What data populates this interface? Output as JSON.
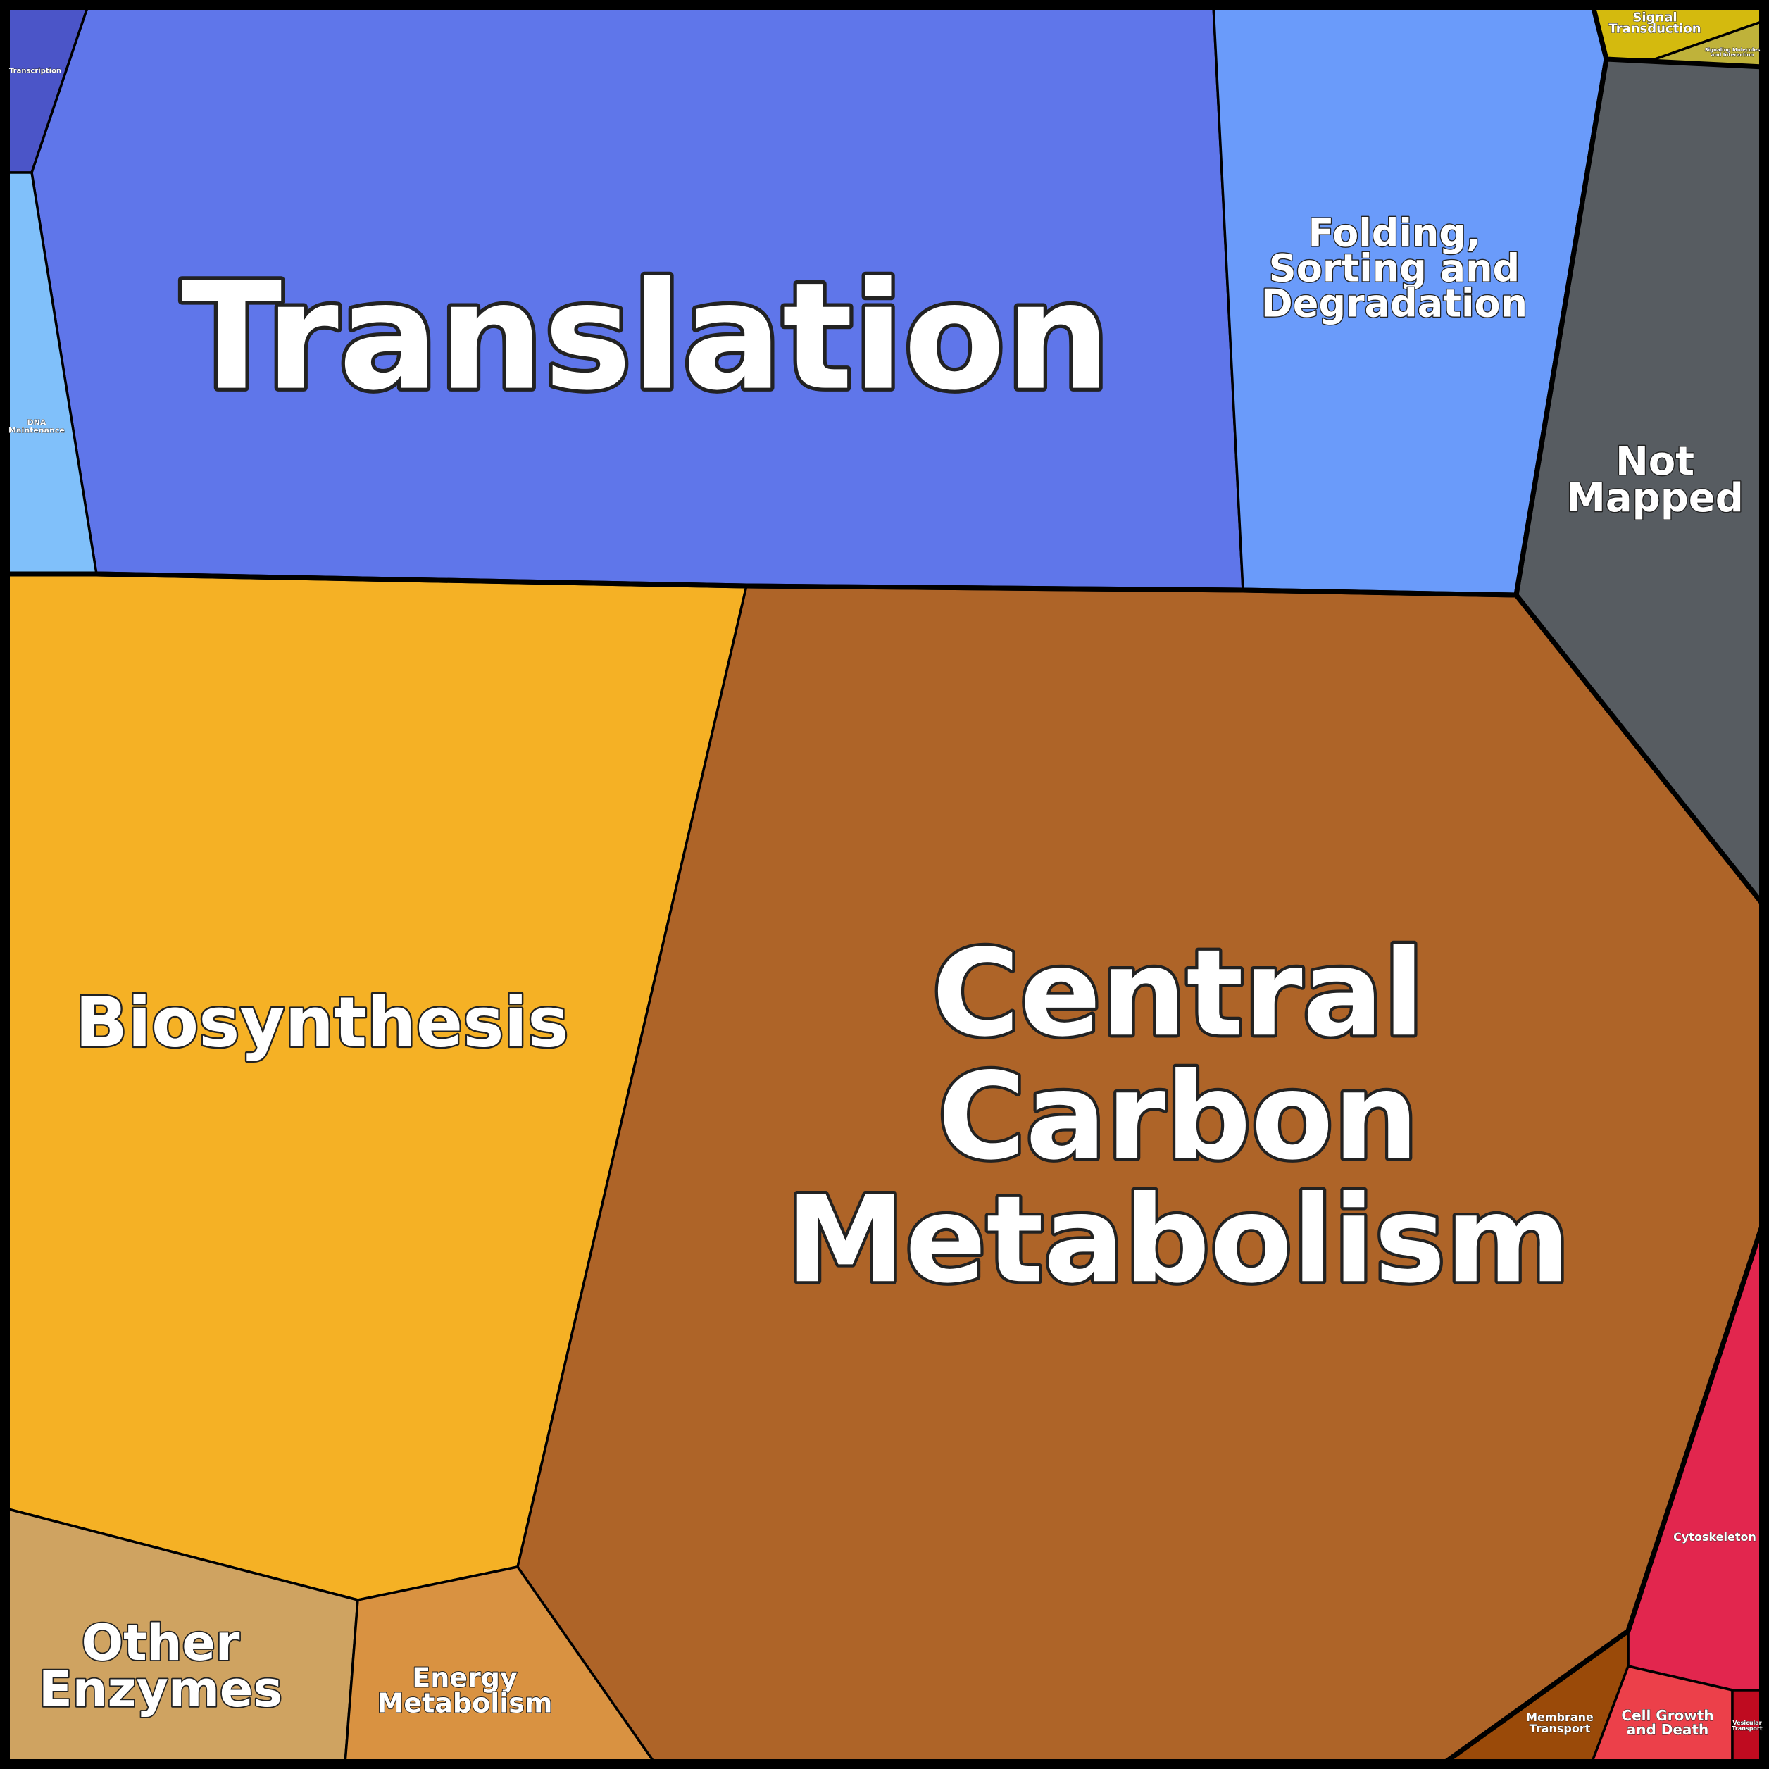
{
  "regions": [
    {
      "id": "translation",
      "label_lines": [
        "Translation"
      ],
      "color": "#5F76EA"
    },
    {
      "id": "transcription",
      "label_lines": [
        "Transcription"
      ],
      "color": "#4B55C8"
    },
    {
      "id": "dna-maintenance",
      "label_lines": [
        "DNA",
        "Maintenance"
      ],
      "color": "#80C0FA"
    },
    {
      "id": "folding-sorting-degradation",
      "label_lines": [
        "Folding,",
        "Sorting and",
        "Degradation"
      ],
      "color": "#6A9BFA"
    },
    {
      "id": "signal-transduction",
      "label_lines": [
        "Signal",
        "Transduction"
      ],
      "color": "#D4BA0E"
    },
    {
      "id": "signaling-molecules",
      "label_lines": [
        "Signaling Molecules",
        "and Interaction"
      ],
      "color": "#BFB23A"
    },
    {
      "id": "not-mapped",
      "label_lines": [
        "Not",
        "Mapped"
      ],
      "color": "#575C61"
    },
    {
      "id": "biosynthesis",
      "label_lines": [
        "Biosynthesis"
      ],
      "color": "#F5B125"
    },
    {
      "id": "central-carbon-metabolism",
      "label_lines": [
        "Central",
        "Carbon",
        "Metabolism"
      ],
      "color": "#AE6428"
    },
    {
      "id": "other-enzymes",
      "label_lines": [
        "Other",
        "Enzymes"
      ],
      "color": "#CFA361"
    },
    {
      "id": "energy-metabolism",
      "label_lines": [
        "Energy",
        "Metabolism"
      ],
      "color": "#D99241"
    },
    {
      "id": "cytoskeleton",
      "label_lines": [
        "Cytoskeleton"
      ],
      "color": "#E2264E"
    },
    {
      "id": "membrane-transport",
      "label_lines": [
        "Membrane",
        "Transport"
      ],
      "color": "#9A4A09"
    },
    {
      "id": "cell-growth-and-death",
      "label_lines": [
        "Cell Growth",
        "and Death"
      ],
      "color": "#EC404A"
    },
    {
      "id": "vesicular-transport",
      "label_lines": [
        "Vesicular",
        "Transport"
      ],
      "color": "#BF0B20"
    }
  ]
}
